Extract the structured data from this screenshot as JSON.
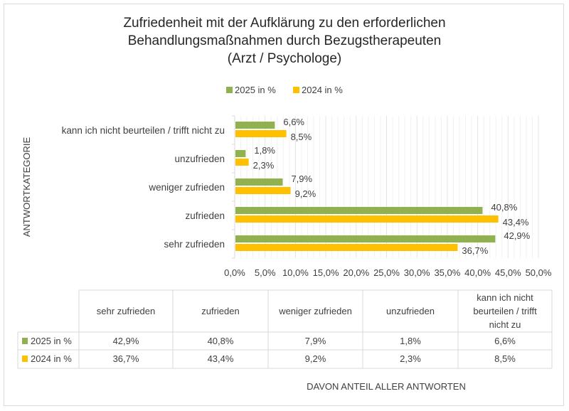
{
  "chart_data": {
    "type": "bar",
    "orientation": "horizontal",
    "title": [
      "Zufriedenheit mit der Aufklärung zu den erforderlichen",
      "Behandlungsmaßnahmen durch Bezugstherapeuten",
      "(Arzt / Psychologe)"
    ],
    "ylabel": "ANTWORTKATEGORIE",
    "xlabel": "DAVON ANTEIL ALLER ANTWORTEN",
    "categories": [
      "sehr zufrieden",
      "zufrieden",
      "weniger zufrieden",
      "unzufrieden",
      "kann ich nicht beurteilen / trifft nicht zu"
    ],
    "table_headers": [
      "sehr zufrieden",
      "zufrieden",
      "weniger zufrieden",
      "unzufrieden",
      "kann ich nicht beurteilen / trifft nicht zu"
    ],
    "series": [
      {
        "name": "2025 in %",
        "color": "#8fb24f",
        "values": [
          42.9,
          40.8,
          7.9,
          1.8,
          6.6
        ],
        "labels": [
          "42,9%",
          "40,8%",
          "7,9%",
          "1,8%",
          "6,6%"
        ]
      },
      {
        "name": "2024 in %",
        "color": "#ffc000",
        "values": [
          36.7,
          43.4,
          9.2,
          2.3,
          8.5
        ],
        "labels": [
          "36,7%",
          "43,4%",
          "9,2%",
          "2,3%",
          "8,5%"
        ]
      }
    ],
    "xlim": [
      0,
      50
    ],
    "xticks": [
      "0,0%",
      "5,0%",
      "10,0%",
      "15,0%",
      "20,0%",
      "25,0%",
      "30,0%",
      "35,0%",
      "40,0%",
      "45,0%",
      "50,0%"
    ],
    "grid": true,
    "legend": "top",
    "data_table": true
  }
}
